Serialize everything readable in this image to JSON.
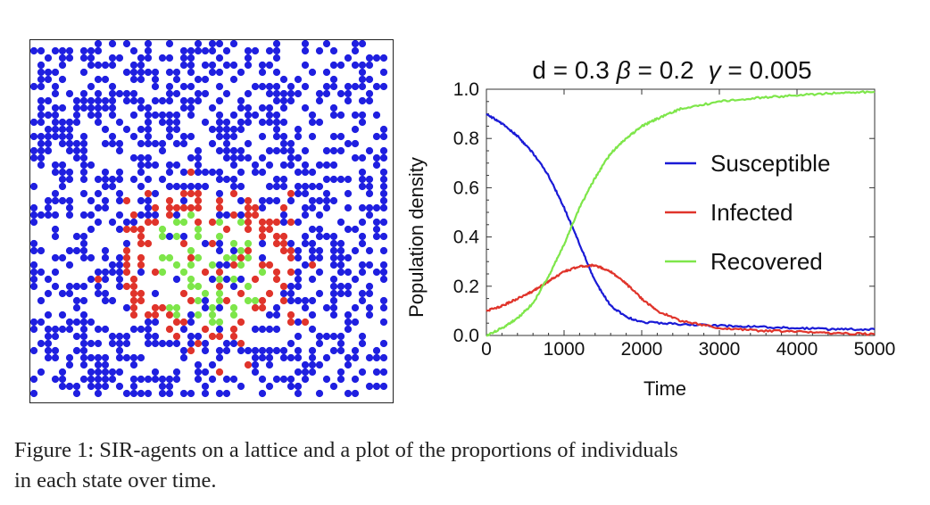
{
  "figure": {
    "caption_lines": [
      "Figure 1: SIR-agents on a lattice and a plot of the proportions of individuals",
      "in each state over time."
    ]
  },
  "lattice": {
    "colors": {
      "susceptible": "#1f1fe0",
      "infected": "#e0342b",
      "recovered": "#7ee64a"
    }
  },
  "chart_data": {
    "type": "line",
    "title_parts": {
      "d": "d = 0.3",
      "beta_symbol": "β",
      "beta_value": " = 0.2",
      "gamma_symbol": "γ",
      "gamma_value": " = 0.005"
    },
    "xlabel": "Time",
    "ylabel": "Population density",
    "xlim": [
      0,
      5000
    ],
    "ylim": [
      0,
      1.0
    ],
    "xticks": [
      0,
      1000,
      2000,
      3000,
      4000,
      5000
    ],
    "yticks": [
      0.0,
      0.2,
      0.4,
      0.6,
      0.8,
      1.0
    ],
    "ytick_labels": [
      "0.0",
      "0.2",
      "0.4",
      "0.6",
      "0.8",
      "1.0"
    ],
    "legend_position": "right",
    "series": [
      {
        "name": "Susceptible",
        "color": "#1a1ad6",
        "x": [
          0,
          200,
          400,
          600,
          800,
          1000,
          1200,
          1400,
          1600,
          1800,
          2000,
          2500,
          3000,
          3500,
          4000,
          4500,
          5000
        ],
        "y": [
          0.9,
          0.86,
          0.81,
          0.74,
          0.65,
          0.52,
          0.37,
          0.22,
          0.12,
          0.075,
          0.055,
          0.045,
          0.04,
          0.035,
          0.03,
          0.025,
          0.025
        ]
      },
      {
        "name": "Infected",
        "color": "#e0342b",
        "x": [
          0,
          200,
          400,
          600,
          800,
          1000,
          1200,
          1400,
          1600,
          1800,
          2000,
          2200,
          2500,
          3000,
          3500,
          4000,
          4500,
          5000
        ],
        "y": [
          0.1,
          0.12,
          0.15,
          0.18,
          0.22,
          0.26,
          0.28,
          0.285,
          0.26,
          0.21,
          0.15,
          0.1,
          0.06,
          0.03,
          0.02,
          0.015,
          0.01,
          0.005
        ]
      },
      {
        "name": "Recovered",
        "color": "#7ee64a",
        "x": [
          0,
          200,
          400,
          600,
          800,
          1000,
          1200,
          1400,
          1600,
          1800,
          2000,
          2200,
          2500,
          3000,
          3500,
          4000,
          4500,
          5000
        ],
        "y": [
          0.0,
          0.03,
          0.07,
          0.13,
          0.24,
          0.37,
          0.52,
          0.64,
          0.74,
          0.8,
          0.85,
          0.88,
          0.92,
          0.95,
          0.965,
          0.975,
          0.985,
          0.99
        ]
      }
    ]
  }
}
